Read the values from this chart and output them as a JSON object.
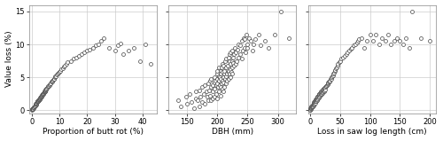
{
  "subplot1": {
    "xlabel": "Proportion of butt rot (%)",
    "ylabel": "Value loss (%)",
    "xlim": [
      -1,
      45
    ],
    "ylim": [
      -0.5,
      16
    ],
    "xticks": [
      0,
      10,
      20,
      30,
      40
    ],
    "yticks": [
      0,
      5,
      10,
      15
    ],
    "x": [
      0.0,
      0.1,
      0.2,
      0.3,
      0.3,
      0.4,
      0.4,
      0.5,
      0.5,
      0.6,
      0.7,
      0.8,
      0.9,
      1.0,
      1.0,
      1.1,
      1.2,
      1.2,
      1.3,
      1.4,
      1.5,
      1.5,
      1.6,
      1.7,
      1.8,
      1.9,
      2.0,
      2.0,
      2.1,
      2.2,
      2.3,
      2.4,
      2.5,
      2.5,
      2.6,
      2.7,
      2.8,
      2.9,
      3.0,
      3.0,
      3.1,
      3.2,
      3.3,
      3.4,
      3.5,
      3.5,
      3.6,
      3.7,
      3.8,
      3.9,
      4.0,
      4.0,
      4.1,
      4.2,
      4.3,
      4.4,
      4.5,
      4.5,
      4.6,
      4.7,
      4.8,
      4.9,
      5.0,
      5.0,
      5.1,
      5.2,
      5.3,
      5.5,
      5.7,
      5.9,
      6.1,
      6.3,
      6.5,
      6.7,
      6.9,
      7.1,
      7.3,
      7.5,
      7.7,
      7.9,
      8.1,
      8.3,
      8.5,
      8.7,
      9.0,
      9.3,
      9.6,
      9.9,
      10.3,
      10.7,
      11.1,
      11.5,
      12.0,
      12.5,
      13.0,
      14.0,
      15.0,
      16.0,
      17.0,
      18.0,
      19.0,
      20.0,
      21.0,
      22.0,
      23.0,
      24.0,
      25.0,
      26.0,
      28.0,
      30.0,
      31.0,
      32.0,
      33.0,
      35.0,
      37.0,
      39.0,
      41.0,
      43.0
    ],
    "y": [
      0.0,
      0.1,
      0.1,
      0.2,
      0.1,
      0.2,
      0.3,
      0.3,
      0.2,
      0.3,
      0.4,
      0.4,
      0.5,
      0.5,
      0.6,
      0.6,
      0.7,
      0.8,
      0.7,
      0.9,
      0.8,
      1.0,
      1.0,
      1.1,
      1.1,
      1.2,
      1.2,
      1.3,
      1.3,
      1.4,
      1.4,
      1.5,
      1.5,
      1.6,
      1.6,
      1.7,
      1.7,
      1.8,
      1.8,
      1.9,
      1.9,
      2.0,
      2.0,
      2.1,
      2.1,
      2.2,
      2.2,
      2.3,
      2.3,
      2.4,
      2.4,
      2.5,
      2.5,
      2.6,
      2.6,
      2.7,
      2.7,
      2.8,
      2.8,
      2.9,
      2.9,
      3.0,
      3.0,
      3.1,
      3.1,
      3.2,
      3.2,
      3.4,
      3.5,
      3.6,
      3.7,
      3.8,
      3.9,
      4.0,
      4.1,
      4.3,
      4.4,
      4.5,
      4.6,
      4.7,
      4.8,
      5.0,
      5.1,
      5.2,
      5.4,
      5.5,
      5.7,
      5.8,
      6.0,
      6.2,
      6.4,
      6.6,
      6.8,
      7.0,
      7.3,
      7.5,
      7.8,
      8.0,
      8.2,
      8.5,
      8.8,
      9.0,
      9.2,
      9.5,
      9.8,
      10.0,
      10.5,
      11.0,
      9.5,
      9.0,
      9.8,
      10.2,
      8.5,
      9.0,
      9.5,
      7.5,
      10.0,
      7.0
    ]
  },
  "subplot2": {
    "xlabel": "DBH (mm)",
    "xlim": [
      120,
      330
    ],
    "ylim": [
      -0.5,
      16
    ],
    "xticks": [
      150,
      200,
      250,
      300
    ],
    "yticks": [
      0,
      5,
      10,
      15
    ],
    "x": [
      135,
      140,
      148,
      150,
      155,
      158,
      162,
      165,
      165,
      168,
      170,
      170,
      172,
      175,
      175,
      178,
      180,
      180,
      182,
      183,
      185,
      185,
      186,
      188,
      188,
      190,
      190,
      190,
      192,
      192,
      193,
      195,
      195,
      195,
      196,
      197,
      198,
      198,
      199,
      200,
      200,
      200,
      200,
      201,
      202,
      202,
      203,
      203,
      204,
      204,
      205,
      205,
      205,
      206,
      206,
      207,
      207,
      208,
      208,
      209,
      209,
      210,
      210,
      210,
      210,
      211,
      212,
      212,
      213,
      213,
      214,
      215,
      215,
      215,
      216,
      216,
      217,
      218,
      218,
      219,
      219,
      220,
      220,
      220,
      221,
      221,
      222,
      222,
      223,
      224,
      225,
      225,
      225,
      226,
      226,
      228,
      228,
      229,
      230,
      230,
      232,
      233,
      235,
      235,
      237,
      238,
      240,
      240,
      242,
      243,
      245,
      245,
      247,
      248,
      250,
      250,
      252,
      255,
      258,
      260,
      263,
      268,
      272,
      278,
      285,
      295,
      305,
      318
    ],
    "y": [
      1.5,
      0.5,
      2.0,
      1.0,
      2.5,
      1.2,
      0.3,
      1.8,
      2.8,
      1.5,
      0.5,
      3.0,
      2.0,
      1.2,
      3.5,
      2.5,
      1.0,
      3.8,
      2.8,
      2.0,
      1.5,
      4.0,
      3.0,
      2.2,
      4.5,
      1.5,
      3.5,
      4.8,
      2.8,
      3.8,
      1.8,
      2.0,
      4.2,
      5.0,
      3.2,
      4.5,
      2.5,
      3.8,
      5.5,
      1.8,
      4.0,
      4.8,
      6.0,
      3.5,
      5.2,
      4.5,
      2.8,
      6.5,
      3.8,
      5.0,
      2.2,
      4.8,
      6.0,
      3.5,
      5.5,
      4.0,
      6.5,
      3.2,
      5.8,
      4.5,
      7.0,
      2.8,
      5.0,
      6.8,
      4.2,
      5.5,
      3.5,
      6.0,
      4.8,
      7.5,
      5.2,
      4.0,
      6.5,
      7.8,
      5.5,
      4.5,
      6.8,
      5.8,
      8.0,
      4.8,
      6.0,
      5.5,
      7.5,
      8.5,
      5.0,
      7.0,
      6.2,
      8.8,
      5.8,
      7.5,
      6.5,
      9.0,
      5.5,
      8.0,
      7.2,
      6.8,
      8.5,
      9.5,
      7.0,
      8.8,
      7.5,
      9.2,
      8.0,
      10.0,
      8.5,
      9.8,
      7.8,
      10.5,
      9.0,
      11.0,
      9.5,
      10.8,
      8.8,
      11.5,
      10.0,
      9.5,
      11.0,
      10.5,
      9.0,
      10.0,
      10.8,
      11.5,
      9.8,
      10.5,
      9.5,
      11.5,
      15.0,
      11.0
    ]
  },
  "subplot3": {
    "xlabel": "Loss in saw log length (cm)",
    "xlim": [
      -3,
      210
    ],
    "ylim": [
      -0.5,
      16
    ],
    "xticks": [
      0,
      50,
      100,
      150,
      200
    ],
    "yticks": [
      0,
      5,
      10,
      15
    ],
    "x": [
      0,
      0,
      0,
      0,
      0,
      1,
      1,
      1,
      2,
      2,
      2,
      3,
      3,
      3,
      4,
      4,
      4,
      4,
      5,
      5,
      5,
      5,
      6,
      6,
      6,
      7,
      7,
      7,
      8,
      8,
      8,
      9,
      9,
      10,
      10,
      10,
      11,
      11,
      12,
      12,
      12,
      13,
      13,
      14,
      14,
      15,
      15,
      15,
      16,
      16,
      17,
      17,
      18,
      18,
      19,
      19,
      20,
      20,
      21,
      21,
      22,
      22,
      23,
      23,
      24,
      24,
      25,
      25,
      26,
      27,
      28,
      29,
      30,
      30,
      31,
      32,
      33,
      34,
      35,
      36,
      37,
      38,
      39,
      40,
      41,
      42,
      43,
      44,
      45,
      46,
      48,
      50,
      52,
      55,
      58,
      60,
      62,
      65,
      68,
      70,
      72,
      75,
      78,
      80,
      82,
      85,
      90,
      95,
      100,
      105,
      110,
      115,
      120,
      125,
      130,
      135,
      140,
      145,
      150,
      155,
      160,
      165,
      170,
      185,
      200
    ],
    "y": [
      0.0,
      0.1,
      0.2,
      0.3,
      0.0,
      0.2,
      0.4,
      0.3,
      0.3,
      0.5,
      0.4,
      0.4,
      0.6,
      0.5,
      0.5,
      0.7,
      0.8,
      0.6,
      0.7,
      0.9,
      1.0,
      0.8,
      0.9,
      1.1,
      1.2,
      1.0,
      1.3,
      1.2,
      1.1,
      1.4,
      1.5,
      1.3,
      1.6,
      1.4,
      1.7,
      1.8,
      1.5,
      1.9,
      1.6,
      2.0,
      2.1,
      1.8,
      2.2,
      1.9,
      2.3,
      2.0,
      2.4,
      2.5,
      2.2,
      2.6,
      2.3,
      2.7,
      2.4,
      2.8,
      2.5,
      2.9,
      2.6,
      3.0,
      2.7,
      3.1,
      2.8,
      3.2,
      2.9,
      3.3,
      3.0,
      3.4,
      3.1,
      3.5,
      3.6,
      3.7,
      3.8,
      3.9,
      4.0,
      4.2,
      4.3,
      4.4,
      4.5,
      4.7,
      4.8,
      5.0,
      5.2,
      5.3,
      5.5,
      5.7,
      5.9,
      6.1,
      6.3,
      6.5,
      6.8,
      7.0,
      7.3,
      7.5,
      7.8,
      8.0,
      8.3,
      8.5,
      8.8,
      9.0,
      9.3,
      9.5,
      9.8,
      10.0,
      10.3,
      10.5,
      10.8,
      11.0,
      9.5,
      10.5,
      11.5,
      10.5,
      11.5,
      10.0,
      11.0,
      10.5,
      11.5,
      10.0,
      10.5,
      11.0,
      10.5,
      10.0,
      11.0,
      9.5,
      15.0,
      11.0,
      10.5
    ]
  },
  "marker_size": 8,
  "marker_color": "white",
  "marker_edge_color": "#444444",
  "marker_edge_width": 0.5,
  "grid_color": "#cccccc",
  "bg_color": "white",
  "font_size": 6.5,
  "tick_font_size": 6
}
